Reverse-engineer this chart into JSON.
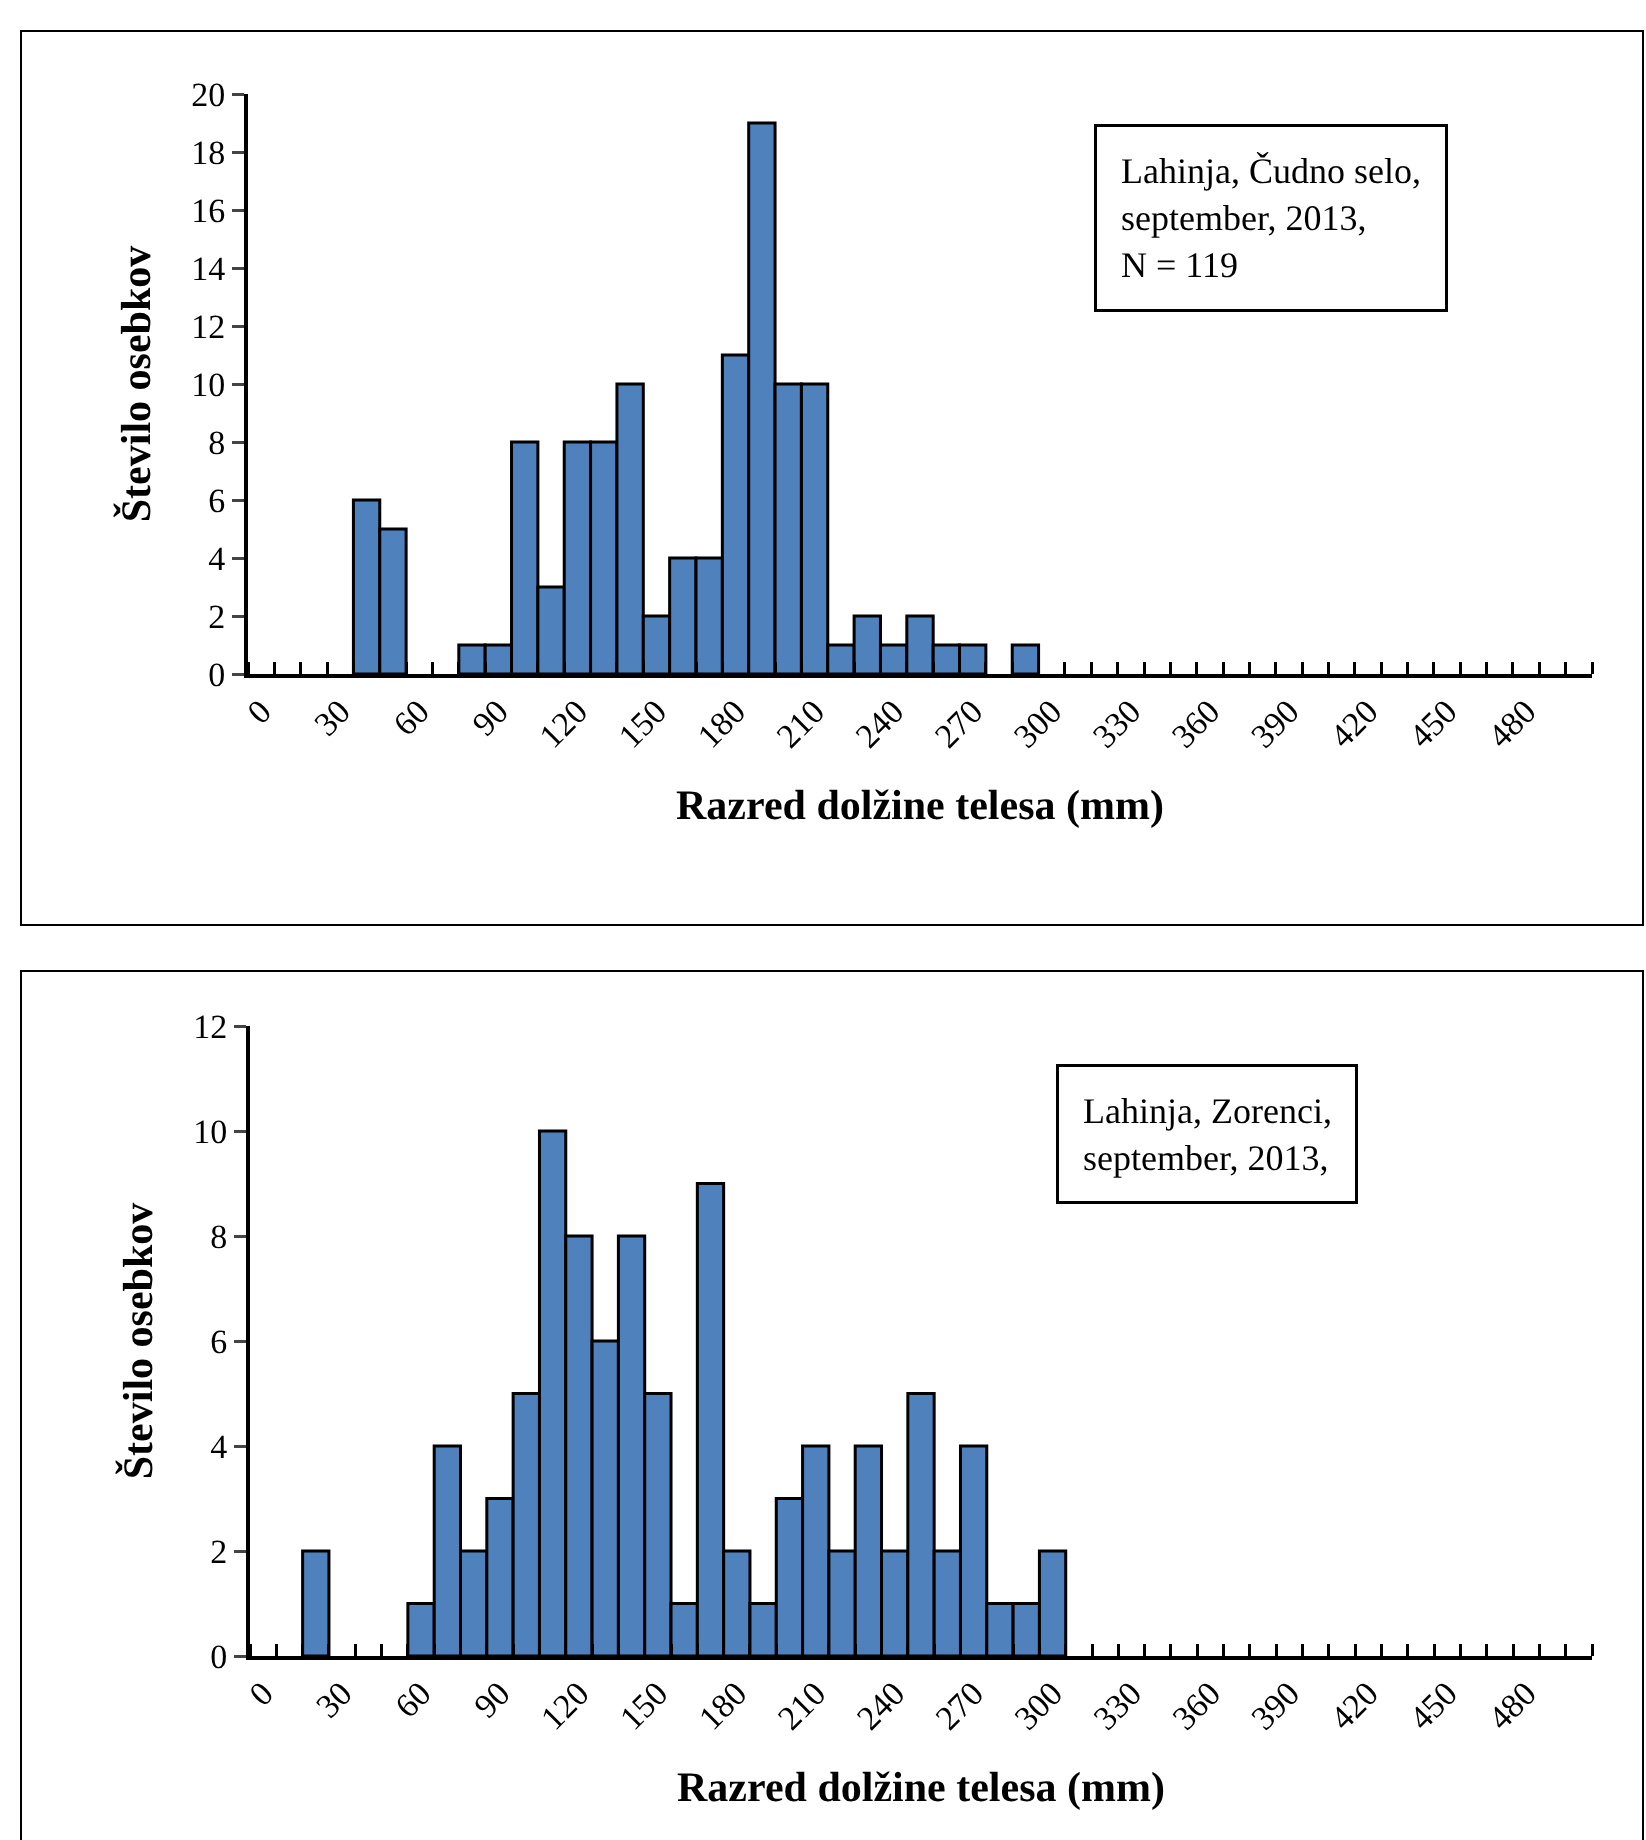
{
  "chart_data": [
    {
      "type": "bar",
      "xlabel": "Razred dolžine telesa (mm)",
      "ylabel": "Število osebkov",
      "color": "#4f81bd",
      "ylim": [
        0,
        20
      ],
      "yticks": [
        0,
        2,
        4,
        6,
        8,
        10,
        12,
        14,
        16,
        18,
        20
      ],
      "grid": false,
      "legend": false,
      "categories": [
        "0",
        null,
        null,
        "30",
        null,
        null,
        "60",
        null,
        null,
        "90",
        null,
        null,
        "120",
        null,
        null,
        "150",
        null,
        null,
        "180",
        null,
        null,
        "210",
        null,
        null,
        "240",
        null,
        null,
        "270",
        null,
        null,
        "300",
        null,
        null,
        "330",
        null,
        null,
        "360",
        null,
        null,
        "390",
        null,
        null,
        "420",
        null,
        null,
        "450",
        null,
        null,
        "480",
        null,
        null
      ],
      "values": [
        0,
        0,
        0,
        0,
        6,
        5,
        0,
        0,
        1,
        1,
        8,
        3,
        8,
        8,
        10,
        2,
        4,
        4,
        11,
        19,
        10,
        10,
        1,
        2,
        1,
        2,
        1,
        1,
        0,
        1,
        0,
        0,
        0,
        0,
        0,
        0,
        0,
        0,
        0,
        0,
        0,
        0,
        0,
        0,
        0,
        0,
        0,
        0,
        0,
        0,
        0
      ],
      "annotations": [
        "Lahinja, Čudno selo,\nseptember, 2013,\nN = 119"
      ]
    },
    {
      "type": "bar",
      "xlabel": "Razred dolžine telesa (mm)",
      "ylabel": "Število osebkov",
      "color": "#4f81bd",
      "ylim": [
        0,
        12
      ],
      "yticks": [
        0,
        2,
        4,
        6,
        8,
        10,
        12
      ],
      "grid": false,
      "legend": false,
      "categories": [
        "0",
        null,
        null,
        "30",
        null,
        null,
        "60",
        null,
        null,
        "90",
        null,
        null,
        "120",
        null,
        null,
        "150",
        null,
        null,
        "180",
        null,
        null,
        "210",
        null,
        null,
        "240",
        null,
        null,
        "270",
        null,
        null,
        "300",
        null,
        null,
        "330",
        null,
        null,
        "360",
        null,
        null,
        "390",
        null,
        null,
        "420",
        null,
        null,
        "450",
        null,
        null,
        "480",
        null,
        null
      ],
      "values": [
        0,
        0,
        2,
        0,
        0,
        0,
        1,
        4,
        2,
        3,
        5,
        10,
        8,
        6,
        8,
        5,
        1,
        9,
        2,
        1,
        3,
        4,
        2,
        4,
        2,
        5,
        2,
        4,
        1,
        1,
        2,
        0,
        0,
        0,
        0,
        0,
        0,
        0,
        0,
        0,
        0,
        0,
        0,
        0,
        0,
        0,
        0,
        0,
        0,
        0,
        0
      ],
      "annotations": [
        "Lahinja, Zorenci,\nseptember, 2013,"
      ]
    }
  ]
}
